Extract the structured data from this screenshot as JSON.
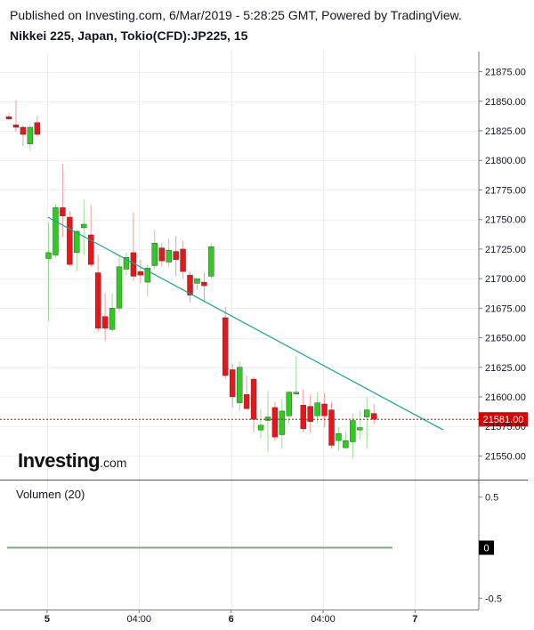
{
  "header": {
    "published": "Published on Investing.com, 6/Mar/2019 - 5:28:25 GMT, Powered by TradingView.",
    "instrument": "Nikkei 225, Japan, Tokio(CFD):JP225, 15"
  },
  "logo": {
    "brand": "Investing",
    "suffix": ".com"
  },
  "volume_label": "Volumen (20)",
  "colors": {
    "up": "#2ecc1f",
    "down": "#e8161a",
    "trendline": "#1aa58c",
    "last_price": "#d50000",
    "grid": "#f0f0f0"
  },
  "chart_data": {
    "type": "candlestick",
    "interval": "15",
    "price_axis": {
      "ylim": [
        21530,
        21892
      ],
      "ticks": [
        21550,
        21575,
        21600,
        21625,
        21650,
        21675,
        21700,
        21725,
        21750,
        21775,
        21800,
        21825,
        21850,
        21875
      ],
      "tick_labels": [
        "21550.00",
        "21575.00",
        "21600.00",
        "21625.00",
        "21650.00",
        "21675.00",
        "21700.00",
        "21725.00",
        "21750.00",
        "21775.00",
        "21800.00",
        "21825.00",
        "21850.00",
        "21875.00"
      ]
    },
    "time_axis": {
      "labels": [
        {
          "label": "5",
          "bold": true,
          "i": 5.4
        },
        {
          "label": "04:00",
          "bold": false,
          "i": 18.4
        },
        {
          "label": "6",
          "bold": true,
          "i": 31.4
        },
        {
          "label": "04:00",
          "bold": false,
          "i": 44.4
        },
        {
          "label": "7",
          "bold": true,
          "i": 57.4
        }
      ]
    },
    "last_price": {
      "value": 21581,
      "label": "21581.00"
    },
    "trendline": {
      "from": {
        "i": 5.5,
        "price": 21752
      },
      "to": {
        "i": 61.4,
        "price": 21572
      }
    },
    "candles": [
      {
        "i": 0,
        "o": 21837,
        "h": 21840,
        "l": 21834,
        "c": 21835
      },
      {
        "i": 1,
        "o": 21830,
        "h": 21851,
        "l": 21824,
        "c": 21828
      },
      {
        "i": 2,
        "o": 21828,
        "h": 21830,
        "l": 21812,
        "c": 21822
      },
      {
        "i": 3,
        "o": 21814,
        "h": 21830,
        "l": 21808,
        "c": 21828
      },
      {
        "i": 4,
        "o": 21832,
        "h": 21838,
        "l": 21820,
        "c": 21822
      },
      {
        "i": 5.6,
        "o": 21717,
        "h": 21748,
        "l": 21664,
        "c": 21722
      },
      {
        "i": 6.6,
        "o": 21720,
        "h": 21763,
        "l": 21718,
        "c": 21760
      },
      {
        "i": 7.6,
        "o": 21760,
        "h": 21797,
        "l": 21735,
        "c": 21753
      },
      {
        "i": 8.6,
        "o": 21752,
        "h": 21757,
        "l": 21711,
        "c": 21712
      },
      {
        "i": 9.6,
        "o": 21722,
        "h": 21742,
        "l": 21706,
        "c": 21740
      },
      {
        "i": 10.6,
        "o": 21743,
        "h": 21767,
        "l": 21720,
        "c": 21746
      },
      {
        "i": 11.6,
        "o": 21737,
        "h": 21762,
        "l": 21710,
        "c": 21712
      },
      {
        "i": 12.6,
        "o": 21705,
        "h": 21720,
        "l": 21655,
        "c": 21658
      },
      {
        "i": 13.6,
        "o": 21668,
        "h": 21688,
        "l": 21647,
        "c": 21658
      },
      {
        "i": 14.6,
        "o": 21657,
        "h": 21688,
        "l": 21655,
        "c": 21675
      },
      {
        "i": 15.6,
        "o": 21675,
        "h": 21720,
        "l": 21672,
        "c": 21710
      },
      {
        "i": 16.6,
        "o": 21708,
        "h": 21722,
        "l": 21703,
        "c": 21718
      },
      {
        "i": 17.6,
        "o": 21722,
        "h": 21756,
        "l": 21698,
        "c": 21702
      },
      {
        "i": 18.6,
        "o": 21706,
        "h": 21716,
        "l": 21696,
        "c": 21703
      },
      {
        "i": 19.6,
        "o": 21697,
        "h": 21712,
        "l": 21685,
        "c": 21709
      },
      {
        "i": 20.6,
        "o": 21711,
        "h": 21741,
        "l": 21708,
        "c": 21730
      },
      {
        "i": 21.6,
        "o": 21726,
        "h": 21730,
        "l": 21710,
        "c": 21715
      },
      {
        "i": 22.6,
        "o": 21714,
        "h": 21734,
        "l": 21710,
        "c": 21724
      },
      {
        "i": 23.6,
        "o": 21723,
        "h": 21736,
        "l": 21702,
        "c": 21716
      },
      {
        "i": 24.6,
        "o": 21725,
        "h": 21732,
        "l": 21700,
        "c": 21706
      },
      {
        "i": 25.6,
        "o": 21703,
        "h": 21706,
        "l": 21680,
        "c": 21686
      },
      {
        "i": 26.6,
        "o": 21696,
        "h": 21700,
        "l": 21690,
        "c": 21700
      },
      {
        "i": 27.6,
        "o": 21697,
        "h": 21705,
        "l": 21680,
        "c": 21694
      },
      {
        "i": 28.6,
        "o": 21702,
        "h": 21730,
        "l": 21700,
        "c": 21727
      },
      {
        "i": 30.6,
        "o": 21667,
        "h": 21676,
        "l": 21615,
        "c": 21618
      },
      {
        "i": 31.6,
        "o": 21623,
        "h": 21628,
        "l": 21591,
        "c": 21600
      },
      {
        "i": 32.6,
        "o": 21595,
        "h": 21630,
        "l": 21588,
        "c": 21625
      },
      {
        "i": 33.6,
        "o": 21602,
        "h": 21618,
        "l": 21592,
        "c": 21590
      },
      {
        "i": 34.6,
        "o": 21615,
        "h": 21617,
        "l": 21570,
        "c": 21581
      },
      {
        "i": 35.6,
        "o": 21572,
        "h": 21590,
        "l": 21565,
        "c": 21576
      },
      {
        "i": 36.6,
        "o": 21580,
        "h": 21605,
        "l": 21553,
        "c": 21583
      },
      {
        "i": 37.6,
        "o": 21591,
        "h": 21596,
        "l": 21563,
        "c": 21566
      },
      {
        "i": 38.6,
        "o": 21568,
        "h": 21598,
        "l": 21556,
        "c": 21588
      },
      {
        "i": 39.6,
        "o": 21584,
        "h": 21605,
        "l": 21577,
        "c": 21604
      },
      {
        "i": 40.6,
        "o": 21603,
        "h": 21635,
        "l": 21601,
        "c": 21604
      },
      {
        "i": 41.6,
        "o": 21593,
        "h": 21606,
        "l": 21570,
        "c": 21573
      },
      {
        "i": 42.6,
        "o": 21592,
        "h": 21602,
        "l": 21570,
        "c": 21579
      },
      {
        "i": 43.6,
        "o": 21584,
        "h": 21604,
        "l": 21578,
        "c": 21595
      },
      {
        "i": 44.6,
        "o": 21594,
        "h": 21603,
        "l": 21574,
        "c": 21584
      },
      {
        "i": 45.6,
        "o": 21589,
        "h": 21596,
        "l": 21556,
        "c": 21559
      },
      {
        "i": 46.6,
        "o": 21563,
        "h": 21574,
        "l": 21555,
        "c": 21569
      },
      {
        "i": 47.6,
        "o": 21557,
        "h": 21570,
        "l": 21556,
        "c": 21563
      },
      {
        "i": 48.6,
        "o": 21562,
        "h": 21586,
        "l": 21548,
        "c": 21580
      },
      {
        "i": 49.6,
        "o": 21572,
        "h": 21588,
        "l": 21564,
        "c": 21574
      },
      {
        "i": 50.6,
        "o": 21583,
        "h": 21600,
        "l": 21556,
        "c": 21589
      },
      {
        "i": 51.6,
        "o": 21586,
        "h": 21594,
        "l": 21577,
        "c": 21581
      }
    ],
    "volume_axis": {
      "ticks": [
        0.5,
        0,
        -0.5
      ],
      "tick_labels": [
        "0.5",
        "0",
        "-0.5"
      ],
      "ylim": [
        -0.55,
        0.55
      ],
      "current_label": "0"
    }
  }
}
